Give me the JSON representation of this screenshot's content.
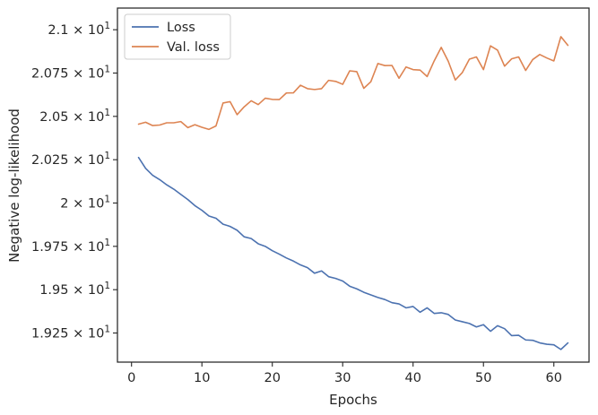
{
  "chart_data": {
    "type": "line",
    "xlabel": "Epochs",
    "ylabel": "Negative log-likelihood",
    "xlim": [
      -2,
      65
    ],
    "ylim": [
      19.082,
      21.125
    ],
    "xticks": [
      0,
      10,
      20,
      30,
      40,
      50,
      60
    ],
    "yticks": [
      {
        "value": 19.25,
        "mantissa": "1.925"
      },
      {
        "value": 19.5,
        "mantissa": "1.95"
      },
      {
        "value": 19.75,
        "mantissa": "1.975"
      },
      {
        "value": 20.0,
        "mantissa": "2"
      },
      {
        "value": 20.25,
        "mantissa": "2.025"
      },
      {
        "value": 20.5,
        "mantissa": "2.05"
      },
      {
        "value": 20.75,
        "mantissa": "2.075"
      },
      {
        "value": 21.0,
        "mantissa": "2.1"
      }
    ],
    "tick_suffix": " × 10",
    "tick_exponent": "1",
    "legend_position": "top-left",
    "grid": false,
    "x": [
      1,
      2,
      3,
      4,
      5,
      6,
      7,
      8,
      9,
      10,
      11,
      12,
      13,
      14,
      15,
      16,
      17,
      18,
      19,
      20,
      21,
      22,
      23,
      24,
      25,
      26,
      27,
      28,
      29,
      30,
      31,
      32,
      33,
      34,
      35,
      36,
      37,
      38,
      39,
      40,
      41,
      42,
      43,
      44,
      45,
      46,
      47,
      48,
      49,
      50,
      51,
      52,
      53,
      54,
      55,
      56,
      57,
      58,
      59,
      60,
      61,
      62
    ],
    "series": [
      {
        "name": "Loss",
        "color": "#4c72b0",
        "values": [
          20.263,
          20.2,
          20.16,
          20.135,
          20.105,
          20.08,
          20.05,
          20.02,
          19.985,
          19.958,
          19.925,
          19.912,
          19.878,
          19.865,
          19.843,
          19.805,
          19.795,
          19.765,
          19.75,
          19.725,
          19.705,
          19.683,
          19.665,
          19.643,
          19.627,
          19.595,
          19.608,
          19.575,
          19.565,
          19.55,
          19.52,
          19.505,
          19.485,
          19.47,
          19.455,
          19.443,
          19.425,
          19.418,
          19.395,
          19.403,
          19.37,
          19.395,
          19.363,
          19.367,
          19.357,
          19.325,
          19.315,
          19.305,
          19.285,
          19.298,
          19.26,
          19.292,
          19.275,
          19.235,
          19.237,
          19.21,
          19.208,
          19.193,
          19.185,
          19.182,
          19.155,
          19.193
        ]
      },
      {
        "name": "Val. loss",
        "color": "#dd8452",
        "values": [
          20.455,
          20.466,
          20.447,
          20.45,
          20.463,
          20.463,
          20.47,
          20.435,
          20.452,
          20.437,
          20.425,
          20.445,
          20.577,
          20.585,
          20.51,
          20.555,
          20.59,
          20.568,
          20.605,
          20.598,
          20.597,
          20.635,
          20.636,
          20.68,
          20.66,
          20.655,
          20.66,
          20.708,
          20.702,
          20.685,
          20.763,
          20.758,
          20.662,
          20.7,
          20.805,
          20.793,
          20.794,
          20.72,
          20.785,
          20.77,
          20.767,
          20.73,
          20.82,
          20.898,
          20.818,
          20.71,
          20.753,
          20.83,
          20.843,
          20.77,
          20.907,
          20.882,
          20.79,
          20.832,
          20.843,
          20.765,
          20.828,
          20.857,
          20.837,
          20.82,
          20.96,
          20.91
        ]
      }
    ]
  }
}
